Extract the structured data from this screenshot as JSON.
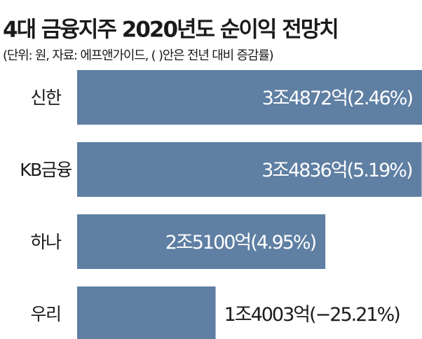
{
  "chart_data": {
    "type": "bar",
    "orientation": "horizontal",
    "title": "4대 금융지주 2020년도 순이익 전망치",
    "subtitle": "(단위: 원, 자료: 에프앤가이드, (   )안은 전년 대비 증감률)",
    "categories": [
      "신한",
      "KB금융",
      "하나",
      "우리"
    ],
    "values": [
      34872,
      34836,
      25100,
      14003
    ],
    "value_labels": [
      "3조4872억",
      "3조4836억",
      "2조5100억",
      "1조4003억"
    ],
    "change_labels": [
      "(2.46%)",
      "(5.19%)",
      "(4.95%)",
      "(−25.21%)"
    ],
    "color": "#5f7fa3"
  }
}
